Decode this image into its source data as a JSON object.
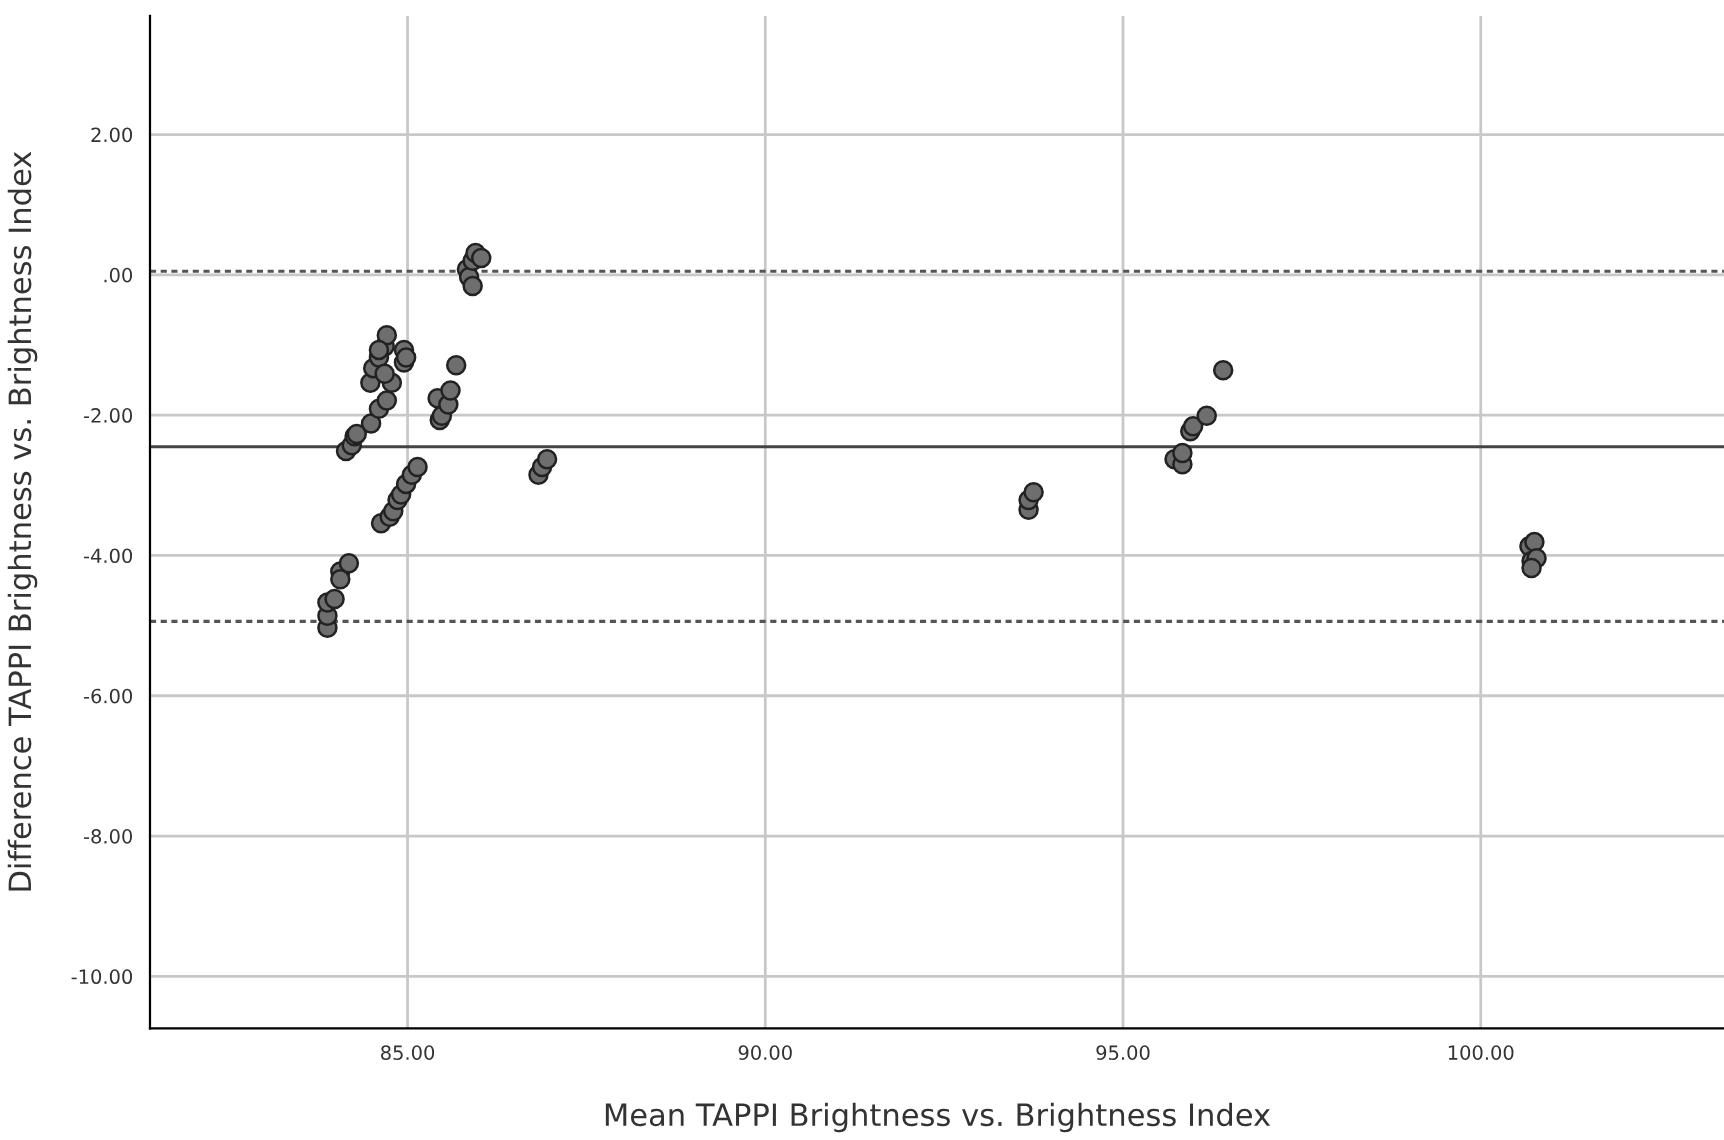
{
  "chart_data": {
    "type": "scatter",
    "xlabel": "Mean TAPPI Brightness vs. Brightness Index",
    "ylabel": "Difference TAPPI Brightness vs. Brightness Index",
    "xlim": [
      81.4,
      103.4
    ],
    "ylim": [
      -10.74,
      3.69
    ],
    "xticks": [
      {
        "value": 85,
        "label": "85.00"
      },
      {
        "value": 90,
        "label": "90.00"
      },
      {
        "value": 95,
        "label": "95.00"
      },
      {
        "value": 100,
        "label": "100.00"
      }
    ],
    "yticks": [
      {
        "value": 2,
        "label": "2.00"
      },
      {
        "value": 0,
        "label": ".00"
      },
      {
        "value": -2,
        "label": "-2.00"
      },
      {
        "value": -4,
        "label": "-4.00"
      },
      {
        "value": -6,
        "label": "-6.00"
      },
      {
        "value": -8,
        "label": "-8.00"
      },
      {
        "value": -10,
        "label": "-10.00"
      }
    ],
    "grid": true,
    "marker": "circle",
    "ref_lines": [
      {
        "axis": "y",
        "value": 0.05,
        "label": null,
        "color": "#555555",
        "line_style": "dotted"
      },
      {
        "axis": "y",
        "value": -2.45,
        "label": null,
        "color": "#444444",
        "line_style": "solid"
      },
      {
        "axis": "y",
        "value": -4.94,
        "label": null,
        "color": "#555555",
        "line_style": "dotted"
      }
    ],
    "series": [
      {
        "color": "#6e6e6e",
        "x": [
          83.88,
          83.88,
          83.88,
          83.98,
          84.06,
          84.06,
          84.18,
          84.14,
          84.22,
          84.26,
          84.29,
          84.49,
          84.6,
          84.71,
          84.78,
          84.48,
          84.52,
          84.6,
          84.68,
          84.68,
          84.71,
          84.6,
          84.95,
          84.95,
          84.98,
          84.63,
          84.75,
          84.8,
          84.86,
          84.91,
          84.98,
          85.06,
          85.14,
          85.42,
          85.45,
          85.48,
          85.57,
          85.6,
          85.68,
          85.83,
          85.86,
          85.91,
          85.91,
          85.95,
          86.03,
          86.83,
          86.88,
          86.95,
          93.68,
          93.68,
          93.75,
          95.72,
          95.83,
          95.83,
          95.94,
          95.98,
          96.17,
          96.4,
          100.68,
          100.75,
          100.71,
          100.78,
          100.71
        ],
        "values": [
          -5.03,
          -4.86,
          -4.67,
          -4.62,
          -4.23,
          -4.34,
          -4.11,
          -2.51,
          -2.43,
          -2.3,
          -2.27,
          -2.12,
          -1.91,
          -1.79,
          -1.54,
          -1.54,
          -1.33,
          -1.18,
          -1.41,
          -1.02,
          -0.86,
          -1.07,
          -1.07,
          -1.25,
          -1.18,
          -3.54,
          -3.45,
          -3.37,
          -3.21,
          -3.13,
          -2.98,
          -2.85,
          -2.74,
          -1.76,
          -2.07,
          -2.01,
          -1.85,
          -1.65,
          -1.29,
          0.08,
          -0.03,
          -0.16,
          0.2,
          0.31,
          0.24,
          -2.85,
          -2.74,
          -2.63,
          -3.35,
          -3.21,
          -3.1,
          -2.63,
          -2.7,
          -2.54,
          -2.23,
          -2.16,
          -2.01,
          -1.36,
          -3.87,
          -3.81,
          -4.08,
          -4.04,
          -4.18
        ]
      }
    ]
  }
}
